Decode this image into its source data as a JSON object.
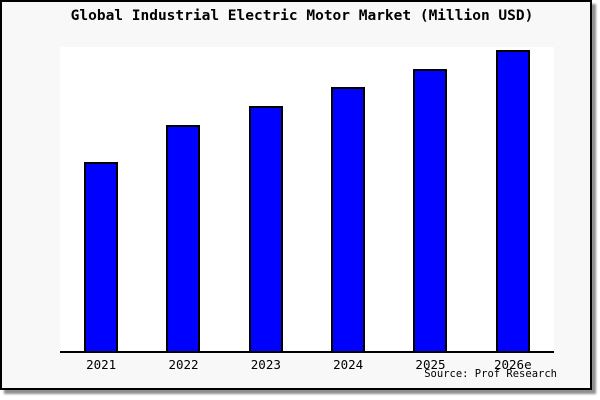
{
  "chart_data": {
    "type": "bar",
    "title": "Global Industrial Electric Motor Market (Million USD)",
    "categories": [
      "2021",
      "2022",
      "2023",
      "2024",
      "2025",
      "2026e"
    ],
    "values": [
      62.8,
      75.1,
      81.4,
      87.7,
      93.7,
      100
    ],
    "values_note": "No y-axis scale or data labels shown; values are relative bar heights with 2026e = 100",
    "xlabel": "",
    "ylabel": "",
    "y_axis_ticks_visible": false,
    "grid": false,
    "legend": false,
    "source": "Source: Prof Research",
    "bar_color": "#0000ff",
    "bar_border_color": "#000000"
  },
  "colors": {
    "page_background": "#f8f8f8",
    "plot_background": "#ffffff",
    "frame_border": "#000000",
    "text": "#000000"
  }
}
